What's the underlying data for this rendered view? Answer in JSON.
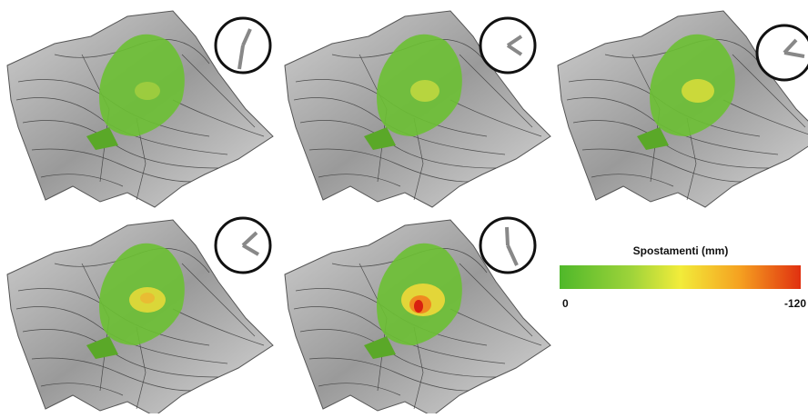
{
  "legend": {
    "title": "Spostamenti (mm)",
    "min_label": "0",
    "max_label": "-120"
  }
}
